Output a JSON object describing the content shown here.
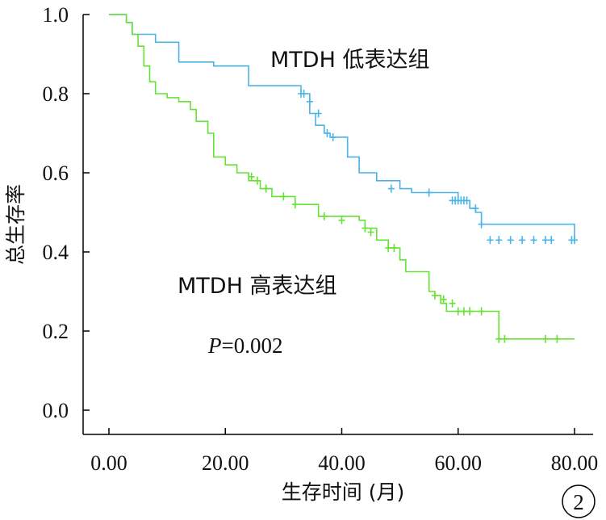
{
  "chart_data": {
    "type": "line",
    "xlabel": "生存时间 (月)",
    "ylabel": "总生存率",
    "xlim": [
      0,
      80
    ],
    "ylim": [
      0,
      1.0
    ],
    "x_ticks": [
      "0.00",
      "20.00",
      "40.00",
      "60.00",
      "80.00"
    ],
    "y_ticks": [
      "0.0",
      "0.2",
      "0.4",
      "0.6",
      "0.8",
      "1.0"
    ],
    "grid": false,
    "series": [
      {
        "name": "MTDH 低表达组",
        "color": "#4ab4e6",
        "step_x": [
          0,
          3,
          4,
          8,
          12,
          18,
          24,
          33,
          34.5,
          35.5,
          37,
          38,
          41,
          43,
          46,
          50,
          52,
          60,
          62,
          63,
          64,
          80
        ],
        "step_y": [
          1.0,
          0.98,
          0.95,
          0.93,
          0.88,
          0.87,
          0.82,
          0.8,
          0.75,
          0.72,
          0.7,
          0.69,
          0.64,
          0.6,
          0.58,
          0.56,
          0.55,
          0.53,
          0.51,
          0.5,
          0.47,
          0.43
        ],
        "censored_x": [
          33,
          33.5,
          34.5,
          36,
          37.5,
          38.5,
          48.5,
          55,
          59,
          59.5,
          60,
          60.5,
          61,
          61.5,
          63,
          64,
          65.5,
          67,
          69,
          71,
          73,
          75,
          76,
          79.5,
          80
        ],
        "censored_y": [
          0.8,
          0.8,
          0.78,
          0.75,
          0.7,
          0.69,
          0.56,
          0.55,
          0.53,
          0.53,
          0.53,
          0.53,
          0.53,
          0.53,
          0.51,
          0.47,
          0.43,
          0.43,
          0.43,
          0.43,
          0.43,
          0.43,
          0.43,
          0.43,
          0.43
        ]
      },
      {
        "name": "MTDH 高表达组",
        "color": "#66e233",
        "step_x": [
          0,
          3,
          4,
          5,
          6,
          7,
          8,
          10,
          12,
          14,
          15,
          17,
          18,
          20,
          22,
          24,
          26,
          28,
          32,
          36,
          43,
          44,
          46,
          48,
          50,
          51,
          55,
          56,
          57,
          58,
          60,
          62,
          67,
          80
        ],
        "step_y": [
          1.0,
          0.98,
          0.95,
          0.92,
          0.87,
          0.83,
          0.8,
          0.79,
          0.78,
          0.76,
          0.73,
          0.7,
          0.64,
          0.62,
          0.6,
          0.58,
          0.56,
          0.54,
          0.52,
          0.49,
          0.48,
          0.46,
          0.43,
          0.41,
          0.38,
          0.35,
          0.3,
          0.29,
          0.27,
          0.25,
          0.25,
          0.25,
          0.18,
          0.18
        ],
        "censored_x": [
          24.5,
          25.5,
          27,
          30,
          32,
          37,
          40,
          44,
          45,
          48,
          49,
          56,
          57.5,
          59,
          60,
          61,
          62,
          64,
          67,
          68,
          75,
          77
        ],
        "censored_y": [
          0.59,
          0.58,
          0.56,
          0.54,
          0.52,
          0.49,
          0.48,
          0.46,
          0.45,
          0.41,
          0.41,
          0.29,
          0.28,
          0.27,
          0.25,
          0.25,
          0.25,
          0.25,
          0.18,
          0.18,
          0.18,
          0.18
        ]
      }
    ],
    "annotations": {
      "low_label": "MTDH 低表达组",
      "high_label": "MTDH 高表达组",
      "p_symbol": "P",
      "p_value": "=0.002",
      "panel_number": "2"
    }
  }
}
